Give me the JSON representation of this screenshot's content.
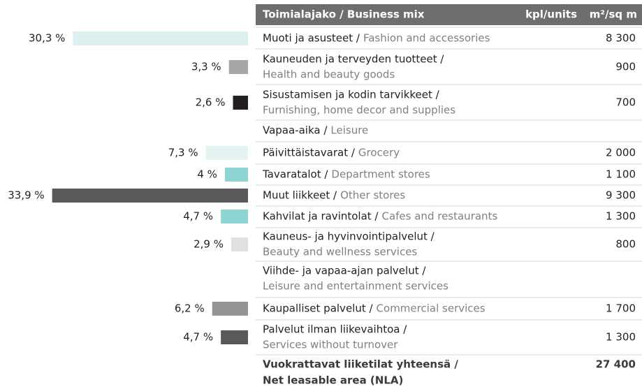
{
  "header": {
    "title": "Toimialajako / Business mix",
    "units": "kpl/units",
    "area": "m²/sq m"
  },
  "chart_data": {
    "type": "bar",
    "orientation": "horizontal",
    "values": [
      30.3,
      3.3,
      2.6,
      null,
      7.3,
      4,
      33.9,
      4.7,
      2.9,
      null,
      6.2,
      4.7
    ],
    "value_labels": [
      "30,3 %",
      "3,3 %",
      "2,6 %",
      null,
      "7,3 %",
      "4 %",
      "33,9 %",
      "4,7 %",
      "2,9 %",
      null,
      "6,2 %",
      "4,7 %"
    ],
    "colors": [
      "#dcf0f0",
      "#a7a7aa",
      "#231f20",
      null,
      "#e5f4f3",
      "#8ed3d3",
      "#58595b",
      "#8ed3d3",
      "#e0e0e2",
      null,
      "#959597",
      "#58595b"
    ]
  },
  "rows": [
    {
      "fi": "Muoti ja asusteet /",
      "en": "Fashion and accessories",
      "area": "8 300"
    },
    {
      "fi": "Kauneuden ja terveyden tuotteet /",
      "en": "Health and beauty goods",
      "area": "900"
    },
    {
      "fi": "Sisustamisen ja kodin tarvikkeet /",
      "en": "Furnishing, home decor and supplies",
      "area": "700"
    },
    {
      "fi": "Vapaa-aika /",
      "en": "Leisure",
      "area": null
    },
    {
      "fi": "Päivittäistavarat /",
      "en": "Grocery",
      "area": "2 000"
    },
    {
      "fi": "Tavaratalot /",
      "en": "Department stores",
      "area": "1 100"
    },
    {
      "fi": "Muut liikkeet /",
      "en": "Other stores",
      "area": "9 300"
    },
    {
      "fi": "Kahvilat ja ravintolat /",
      "en": "Cafes and restaurants",
      "area": "1 300"
    },
    {
      "fi": "Kauneus- ja hyvinvointipalvelut /",
      "en": "Beauty and wellness services",
      "area": "800"
    },
    {
      "fi": "Viihde- ja vapaa-ajan palvelut /",
      "en": "Leisure and entertainment services",
      "area": null
    },
    {
      "fi": "Kaupalliset palvelut /",
      "en": "Commercial services",
      "area": "1 700"
    },
    {
      "fi": "Palvelut ilman liikevaihtoa /",
      "en": "Services without turnover",
      "area": "1 300"
    }
  ],
  "total": {
    "fi": "Vuokrattavat liiketilat yhteensä /",
    "en": "Net leasable area (NLA)",
    "area": "27 400"
  }
}
